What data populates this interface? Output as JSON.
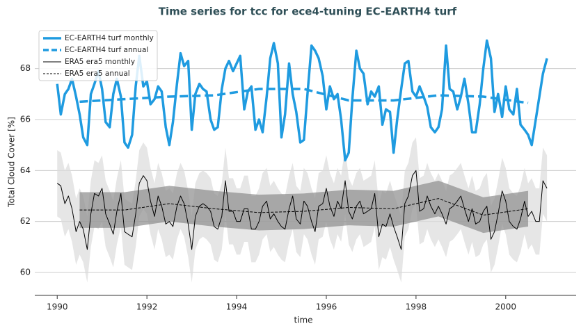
{
  "chart_data": {
    "type": "line",
    "title": "Time series for tcc for ece4-tuning EC-EARTH4 turf",
    "xlabel": "time",
    "ylabel": "Total Cloud Cover [%]",
    "xlim": [
      1989.5,
      2001.57
    ],
    "xticks": [
      1990,
      1992,
      1994,
      1996,
      1998,
      2000
    ],
    "ylim": [
      59.1,
      69.6
    ],
    "yticks": [
      60,
      62,
      64,
      66,
      68
    ],
    "grid": true,
    "legend": "upper left",
    "series": [
      {
        "name": "EC-EARTH4 turf monthly",
        "color": "#1f9be0",
        "linewidth": 3.5,
        "linestyle": "solid",
        "x": [
          1990.0,
          1990.08,
          1990.17,
          1990.25,
          1990.33,
          1990.42,
          1990.5,
          1990.58,
          1990.67,
          1990.75,
          1990.83,
          1990.92,
          1991.0,
          1991.08,
          1991.17,
          1991.25,
          1991.33,
          1991.42,
          1991.5,
          1991.58,
          1991.67,
          1991.75,
          1991.83,
          1991.92,
          1992.0,
          1992.08,
          1992.17,
          1992.25,
          1992.33,
          1992.42,
          1992.5,
          1992.58,
          1992.67,
          1992.75,
          1992.83,
          1992.92,
          1993.0,
          1993.08,
          1993.17,
          1993.25,
          1993.33,
          1993.42,
          1993.5,
          1993.58,
          1993.67,
          1993.75,
          1993.83,
          1993.92,
          1994.0,
          1994.08,
          1994.17,
          1994.25,
          1994.33,
          1994.42,
          1994.5,
          1994.58,
          1994.67,
          1994.75,
          1994.83,
          1994.92,
          1995.0,
          1995.08,
          1995.17,
          1995.25,
          1995.33,
          1995.42,
          1995.5,
          1995.58,
          1995.67,
          1995.75,
          1995.83,
          1995.92,
          1996.0,
          1996.08,
          1996.17,
          1996.25,
          1996.33,
          1996.42,
          1996.5,
          1996.58,
          1996.67,
          1996.75,
          1996.83,
          1996.92,
          1997.0,
          1997.08,
          1997.17,
          1997.25,
          1997.33,
          1997.42,
          1997.5,
          1997.58,
          1997.67,
          1997.75,
          1997.83,
          1997.92,
          1998.0,
          1998.08,
          1998.17,
          1998.25,
          1998.33,
          1998.42,
          1998.5,
          1998.58,
          1998.67,
          1998.75,
          1998.83,
          1998.92,
          1999.0,
          1999.08,
          1999.17,
          1999.25,
          1999.33,
          1999.42,
          1999.5,
          1999.58,
          1999.67,
          1999.75,
          1999.83,
          1999.92,
          2000.0,
          2000.08,
          2000.17,
          2000.25,
          2000.33,
          2000.42,
          2000.5,
          2000.58,
          2000.67,
          2000.75,
          2000.83,
          2000.92
        ],
        "values": [
          67.4,
          66.2,
          67.0,
          67.2,
          67.6,
          66.9,
          66.2,
          65.3,
          65.0,
          67.0,
          67.4,
          67.9,
          67.2,
          65.9,
          65.7,
          67.0,
          67.6,
          66.9,
          65.1,
          64.9,
          65.4,
          67.3,
          68.5,
          67.3,
          67.5,
          66.6,
          66.8,
          67.3,
          67.1,
          65.7,
          65.0,
          65.9,
          67.4,
          68.6,
          68.1,
          68.3,
          65.6,
          67.0,
          67.4,
          67.2,
          67.1,
          66.0,
          65.6,
          65.7,
          67.2,
          68.0,
          68.3,
          67.9,
          68.2,
          68.5,
          66.4,
          67.1,
          67.3,
          65.6,
          66.0,
          65.5,
          66.9,
          68.4,
          69.0,
          68.2,
          65.3,
          66.2,
          68.2,
          67.0,
          66.3,
          65.1,
          65.2,
          67.0,
          68.9,
          68.7,
          68.4,
          67.7,
          66.4,
          67.3,
          66.8,
          67.0,
          66.0,
          64.4,
          64.7,
          66.8,
          68.7,
          68.0,
          67.8,
          66.6,
          67.1,
          66.9,
          67.3,
          65.8,
          66.4,
          66.3,
          64.7,
          66.0,
          67.2,
          68.2,
          68.3,
          67.1,
          66.9,
          67.3,
          66.9,
          66.5,
          65.7,
          65.5,
          65.7,
          66.4,
          68.9,
          67.2,
          67.1,
          66.4,
          66.9,
          67.6,
          66.6,
          65.5,
          65.5,
          66.6,
          68.0,
          69.1,
          68.4,
          66.3,
          67.0,
          66.1,
          67.3,
          66.4,
          66.2,
          67.2,
          65.8,
          65.6,
          65.4,
          65.0,
          66.0,
          66.9,
          67.8,
          68.4
        ]
      },
      {
        "name": "EC-EARTH4 turf annual",
        "color": "#1f9be0",
        "linewidth": 3.5,
        "linestyle": "dashed",
        "x": [
          1990.5,
          1991.5,
          1992.5,
          1993.5,
          1994.5,
          1995.5,
          1996.5,
          1997.5,
          1998.5,
          1999.5,
          2000.5
        ],
        "values": [
          66.7,
          66.8,
          66.9,
          66.95,
          67.2,
          67.2,
          66.75,
          66.75,
          66.95,
          66.9,
          66.65
        ]
      },
      {
        "name": "ERA5 era5 monthly",
        "color": "#000000",
        "linewidth": 1,
        "linestyle": "solid",
        "std": 1.3,
        "band_color": "#dcdcdc",
        "x": [
          1990.0,
          1990.08,
          1990.17,
          1990.25,
          1990.33,
          1990.42,
          1990.5,
          1990.58,
          1990.67,
          1990.75,
          1990.83,
          1990.92,
          1991.0,
          1991.08,
          1991.17,
          1991.25,
          1991.33,
          1991.42,
          1991.5,
          1991.58,
          1991.67,
          1991.75,
          1991.83,
          1991.92,
          1992.0,
          1992.08,
          1992.17,
          1992.25,
          1992.33,
          1992.42,
          1992.5,
          1992.58,
          1992.67,
          1992.75,
          1992.83,
          1992.92,
          1993.0,
          1993.08,
          1993.17,
          1993.25,
          1993.33,
          1993.42,
          1993.5,
          1993.58,
          1993.67,
          1993.75,
          1993.83,
          1993.92,
          1994.0,
          1994.08,
          1994.17,
          1994.25,
          1994.33,
          1994.42,
          1994.5,
          1994.58,
          1994.67,
          1994.75,
          1994.83,
          1994.92,
          1995.0,
          1995.08,
          1995.17,
          1995.25,
          1995.33,
          1995.42,
          1995.5,
          1995.58,
          1995.67,
          1995.75,
          1995.83,
          1995.92,
          1996.0,
          1996.08,
          1996.17,
          1996.25,
          1996.33,
          1996.42,
          1996.5,
          1996.58,
          1996.67,
          1996.75,
          1996.83,
          1996.92,
          1997.0,
          1997.08,
          1997.17,
          1997.25,
          1997.33,
          1997.42,
          1997.5,
          1997.58,
          1997.67,
          1997.75,
          1997.83,
          1997.92,
          1998.0,
          1998.08,
          1998.17,
          1998.25,
          1998.33,
          1998.42,
          1998.5,
          1998.58,
          1998.67,
          1998.75,
          1998.83,
          1998.92,
          1999.0,
          1999.08,
          1999.17,
          1999.25,
          1999.33,
          1999.42,
          1999.5,
          1999.58,
          1999.67,
          1999.75,
          1999.83,
          1999.92,
          2000.0,
          2000.08,
          2000.17,
          2000.25,
          2000.33,
          2000.42,
          2000.5,
          2000.58,
          2000.67,
          2000.75,
          2000.83,
          2000.92
        ],
        "values": [
          63.5,
          63.4,
          62.7,
          63.0,
          62.5,
          61.6,
          62.0,
          61.7,
          60.9,
          62.3,
          63.1,
          63.0,
          63.3,
          62.3,
          61.9,
          61.5,
          62.4,
          63.1,
          61.6,
          61.5,
          61.4,
          62.3,
          63.5,
          63.8,
          63.6,
          62.8,
          62.2,
          63.0,
          62.6,
          61.9,
          62.0,
          61.8,
          62.6,
          63.0,
          62.7,
          61.9,
          60.9,
          62.2,
          62.6,
          62.7,
          62.6,
          62.4,
          61.8,
          61.7,
          62.2,
          63.6,
          62.4,
          62.4,
          62.0,
          62.0,
          62.5,
          62.5,
          61.7,
          61.7,
          62.0,
          62.6,
          62.8,
          62.1,
          62.3,
          62.0,
          61.8,
          61.7,
          62.5,
          63.0,
          62.1,
          61.9,
          62.8,
          62.6,
          62.0,
          61.6,
          62.6,
          62.7,
          63.3,
          62.6,
          62.2,
          62.8,
          62.5,
          63.6,
          62.4,
          62.1,
          62.6,
          62.8,
          62.3,
          62.4,
          62.5,
          63.1,
          61.4,
          61.9,
          61.8,
          62.3,
          61.8,
          61.4,
          60.9,
          62.7,
          63.0,
          63.8,
          64.0,
          62.4,
          62.5,
          63.0,
          62.6,
          62.3,
          62.6,
          62.3,
          61.9,
          62.5,
          62.6,
          62.8,
          63.0,
          62.5,
          62.0,
          62.5,
          61.9,
          62.0,
          62.4,
          62.6,
          61.3,
          61.6,
          62.3,
          63.2,
          62.8,
          62.0,
          61.8,
          61.7,
          62.1,
          62.8,
          62.2,
          62.4,
          62.0,
          62.0,
          63.6,
          63.3
        ]
      },
      {
        "name": "ERA5 era5 annual",
        "color": "#000000",
        "linewidth": 1,
        "linestyle": "dashed",
        "std": 0.7,
        "band_color": "#8c8c8c",
        "x": [
          1990.5,
          1991.5,
          1992.5,
          1993.5,
          1994.5,
          1995.5,
          1996.5,
          1997.5,
          1998.5,
          1999.5,
          2000.5
        ],
        "values": [
          62.45,
          62.45,
          62.7,
          62.5,
          62.35,
          62.4,
          62.55,
          62.5,
          62.9,
          62.25,
          62.5
        ]
      }
    ]
  }
}
